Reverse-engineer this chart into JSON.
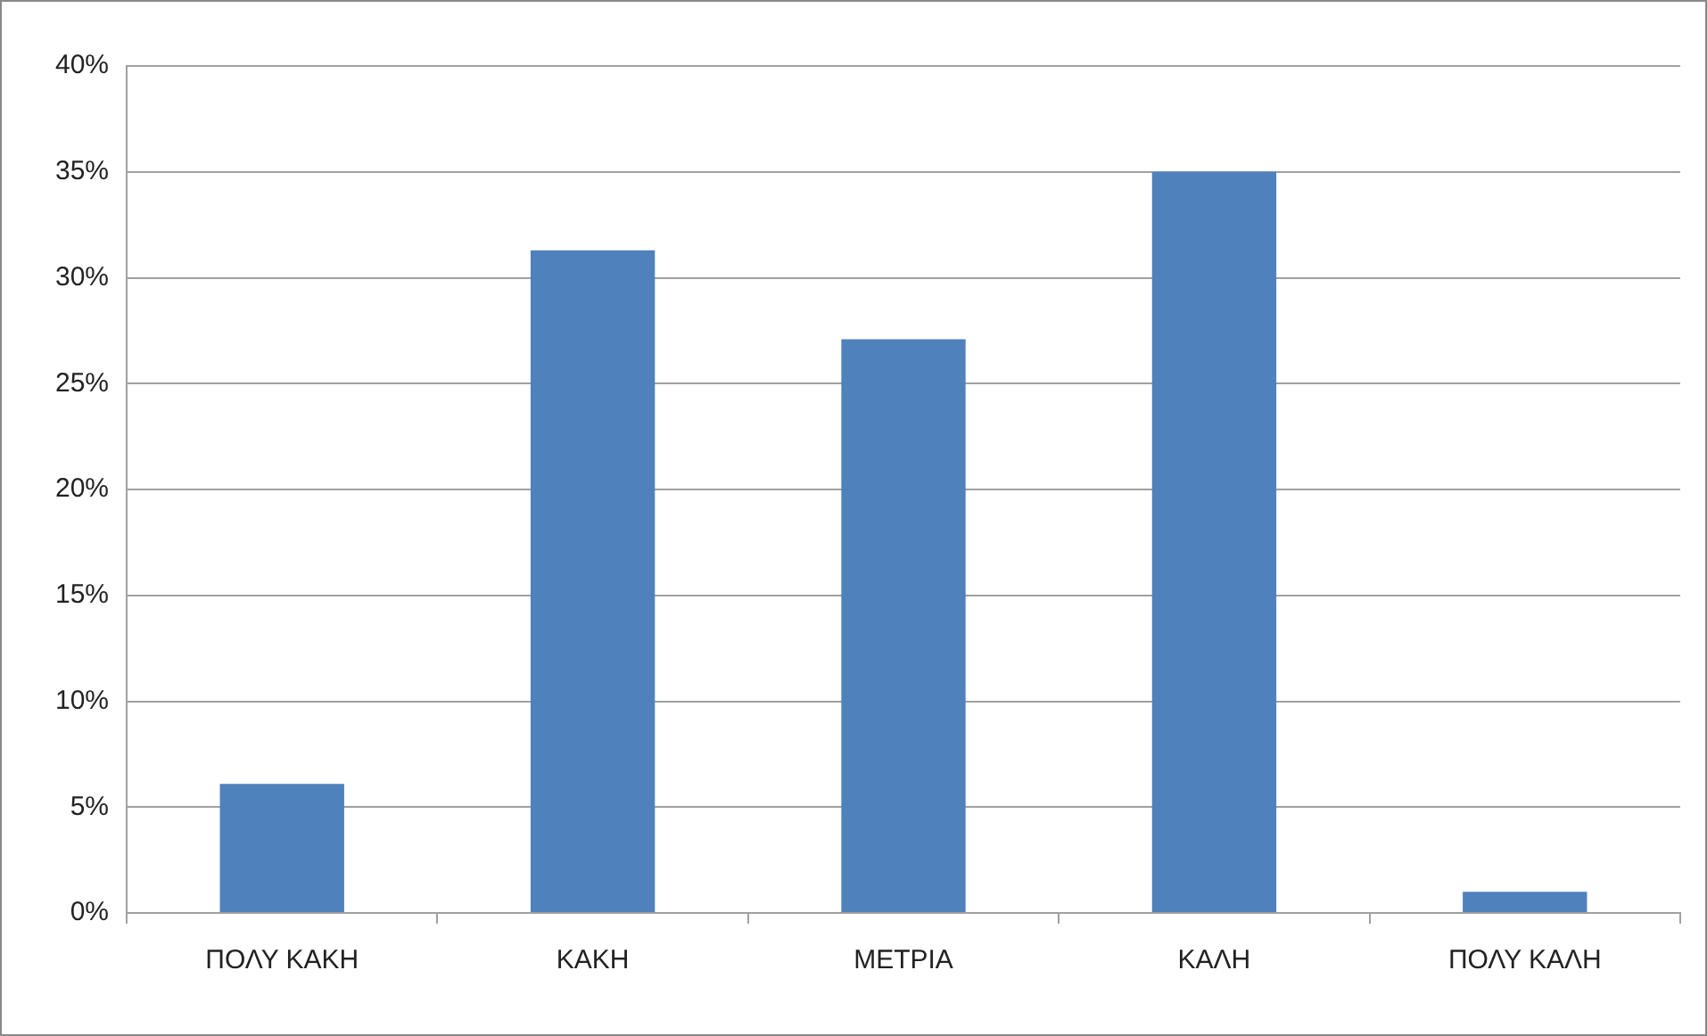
{
  "chart_data": {
    "type": "bar",
    "categories": [
      "ΠΟΛΥ ΚΑΚΗ",
      "ΚΑΚΗ",
      "ΜΕΤΡΙΑ",
      "ΚΑΛΗ",
      "ΠΟΛΥ ΚΑΛΗ"
    ],
    "values": [
      6.1,
      31.3,
      27.1,
      35,
      1
    ],
    "color": "#4f81bd",
    "ylim": [
      0,
      40
    ],
    "yticks": [
      {
        "value": 0,
        "label": "0%"
      },
      {
        "value": 5,
        "label": "5%"
      },
      {
        "value": 10,
        "label": "10%"
      },
      {
        "value": 15,
        "label": "15%"
      },
      {
        "value": 20,
        "label": "20%"
      },
      {
        "value": 25,
        "label": "25%"
      },
      {
        "value": 30,
        "label": "30%"
      },
      {
        "value": 35,
        "label": "35%"
      },
      {
        "value": 40,
        "label": "40%"
      }
    ],
    "grid": "y",
    "legend": false
  }
}
